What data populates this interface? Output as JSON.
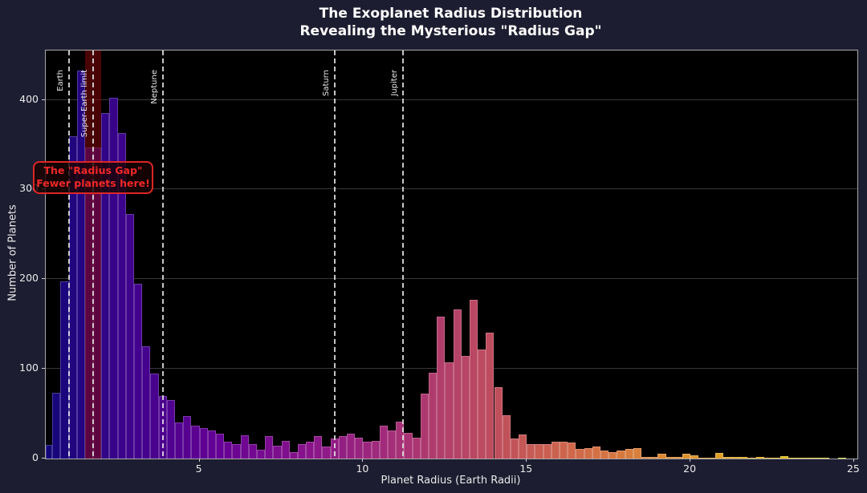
{
  "title": {
    "line1": "The Exoplanet Radius Distribution",
    "line2": "Revealing the Mysterious \"Radius Gap\""
  },
  "axes": {
    "xlabel": "Planet Radius (Earth Radii)",
    "ylabel": "Number of Planets",
    "x_ticks": [
      5,
      10,
      15,
      20,
      25
    ],
    "y_ticks": [
      0,
      100,
      200,
      300,
      400
    ],
    "xlim": [
      0.3,
      25.1
    ],
    "ylim": [
      0,
      455
    ],
    "grid": "horizontal-only",
    "figure_bg": "#1d1d31",
    "axes_bg": "#000000"
  },
  "annotation": {
    "line1": "The \"Radius Gap\"",
    "line2": "Fewer planets here!",
    "text_color": "#f02828",
    "border_color": "#dc2626"
  },
  "reference_lines": [
    {
      "label": "Earth",
      "x": 1.0
    },
    {
      "label": "Super-Earth limit",
      "x": 1.75
    },
    {
      "label": "Neptune",
      "x": 3.88
    },
    {
      "label": "Saturn",
      "x": 9.14
    },
    {
      "label": "Jupiter",
      "x": 11.21
    }
  ],
  "gap_band": {
    "from": 1.5,
    "to": 2.0,
    "color": "rgba(135,5,10,0.55)"
  },
  "chart_data": {
    "type": "bar",
    "subtype": "histogram",
    "title": "The Exoplanet Radius Distribution — Revealing the Mysterious \"Radius Gap\"",
    "xlabel": "Planet Radius (Earth Radii)",
    "ylabel": "Number of Planets",
    "bin_start": 0.25,
    "bin_width": 0.25,
    "values": [
      15,
      73,
      198,
      359,
      433,
      347,
      347,
      385,
      402,
      363,
      273,
      195,
      125,
      95,
      70,
      65,
      40,
      47,
      37,
      34,
      31,
      28,
      19,
      16,
      26,
      16,
      10,
      25,
      14,
      20,
      7,
      16,
      19,
      25,
      13,
      22,
      25,
      28,
      23,
      19,
      20,
      37,
      31,
      41,
      29,
      23,
      72,
      96,
      158,
      107,
      166,
      114,
      177,
      122,
      140,
      80,
      48,
      22,
      27,
      16,
      16,
      16,
      19,
      19,
      18,
      11,
      12,
      13,
      9,
      7,
      9,
      11,
      12,
      2,
      2,
      5,
      2,
      2,
      5,
      4,
      1,
      1,
      6,
      2,
      2,
      2,
      1,
      2,
      1,
      1,
      3,
      1,
      1,
      1,
      1,
      1,
      0,
      1,
      0
    ],
    "xlim": [
      0.3,
      25.1
    ],
    "ylim": [
      0,
      455
    ],
    "legend": "none",
    "colormap": "plasma-like gradient along x",
    "colormap_domain": [
      0,
      25
    ],
    "colormap_anchors": [
      [
        13,
        8,
        135
      ],
      [
        70,
        3,
        159
      ],
      [
        114,
        1,
        168
      ],
      [
        156,
        23,
        158
      ],
      [
        189,
        55,
        134
      ],
      [
        216,
        87,
        107
      ],
      [
        237,
        121,
        83
      ],
      [
        251,
        159,
        58
      ],
      [
        253,
        202,
        38
      ],
      [
        240,
        249,
        33
      ]
    ],
    "color_dim": 0.88
  }
}
